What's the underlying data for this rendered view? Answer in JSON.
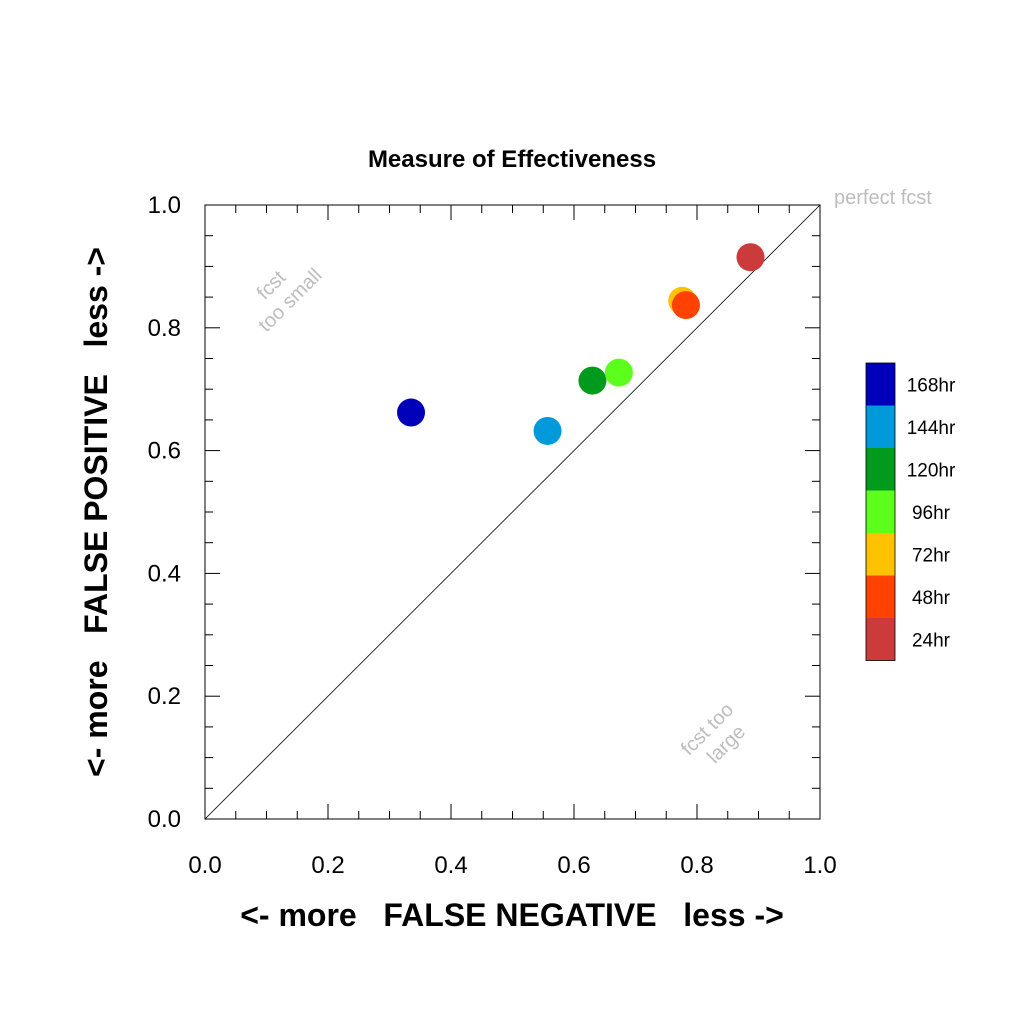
{
  "chart_data": {
    "type": "scatter",
    "title": "Measure of Effectiveness",
    "xlabel": "<- more   FALSE NEGATIVE   less ->",
    "ylabel": "<- more   FALSE POSITIVE   less ->",
    "xlim": [
      0.0,
      1.0
    ],
    "ylim": [
      0.0,
      1.0
    ],
    "xticks": [
      "0.0",
      "0.2",
      "0.4",
      "0.6",
      "0.8",
      "1.0"
    ],
    "yticks": [
      "0.0",
      "0.2",
      "0.4",
      "0.6",
      "0.8",
      "1.0"
    ],
    "grid": false,
    "reference_line": "diagonal",
    "annotations": {
      "perfect": "perfect fcst",
      "too_small": [
        "fcst",
        "too small"
      ],
      "too_large": [
        "fcst too",
        "large"
      ]
    },
    "legend_position": "right",
    "series": [
      {
        "name": "168hr",
        "color": "#0000bb",
        "x": 0.335,
        "y": 0.662
      },
      {
        "name": "144hr",
        "color": "#009adb",
        "x": 0.557,
        "y": 0.632
      },
      {
        "name": "120hr",
        "color": "#009a1c",
        "x": 0.63,
        "y": 0.714
      },
      {
        "name": "96hr",
        "color": "#5cff1c",
        "x": 0.673,
        "y": 0.727
      },
      {
        "name": "72hr",
        "color": "#ffc200",
        "x": 0.776,
        "y": 0.844
      },
      {
        "name": "48hr",
        "color": "#ff4200",
        "x": 0.782,
        "y": 0.837
      },
      {
        "name": "24hr",
        "color": "#cc3b3b",
        "x": 0.887,
        "y": 0.915
      }
    ]
  }
}
